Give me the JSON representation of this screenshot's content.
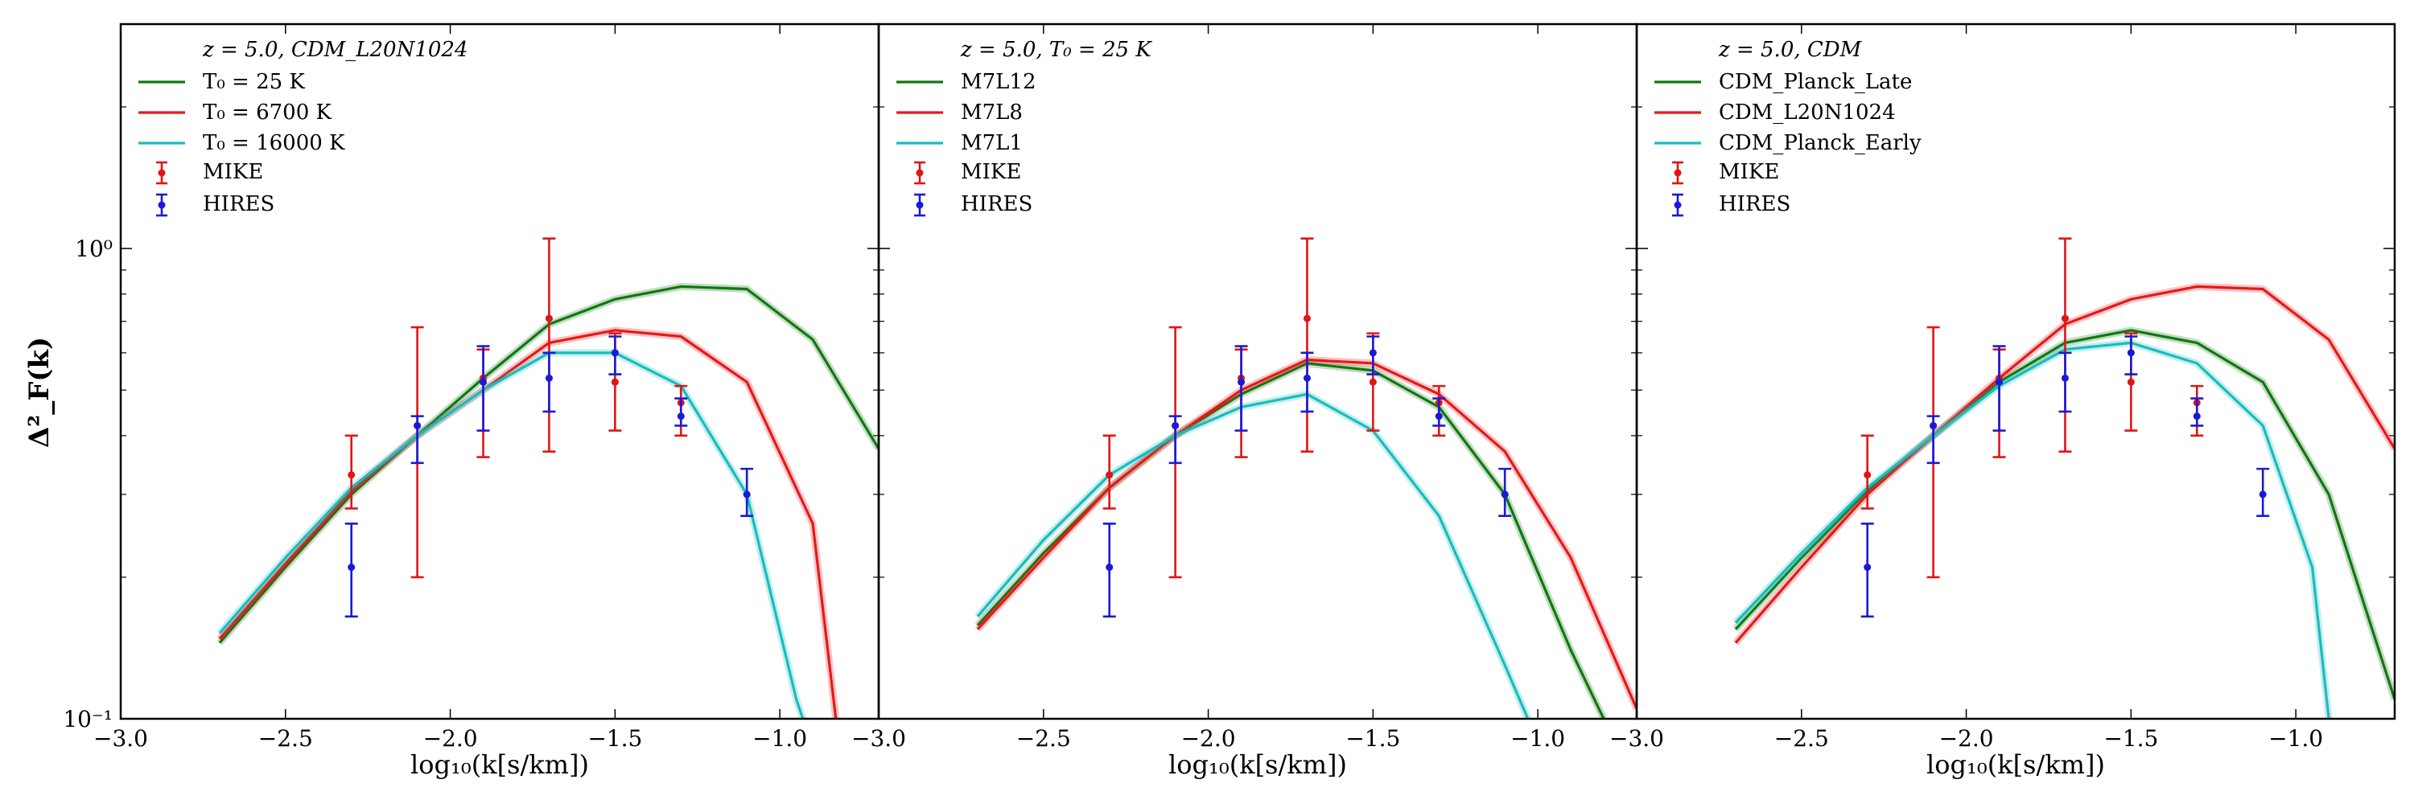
{
  "figure": {
    "ylabel": "Δ²_F(k)",
    "xlabel": "log₁₀(k[s/km])"
  },
  "chart_data": [
    {
      "type": "line",
      "title": "z = 5.0, CDM_L20N1024",
      "xlabel": "log₁₀(k[s/km])",
      "ylabel": "Δ²_F(k)",
      "xlim": [
        -3.0,
        -0.7
      ],
      "ylim": [
        0.1,
        3.0
      ],
      "yscale": "log",
      "xticks": [
        "−3.0",
        "−2.5",
        "−2.0",
        "−1.5",
        "−1.0"
      ],
      "yticks": [
        "10⁰",
        "10⁻¹"
      ],
      "legend_title": "z = 5.0, CDM_L20N1024",
      "legend_position": "top-left",
      "series": [
        {
          "name": "T₀ = 25 K",
          "color": "#117711",
          "x": [
            -2.7,
            -2.5,
            -2.3,
            -2.1,
            -1.9,
            -1.7,
            -1.5,
            -1.3,
            -1.1,
            -0.9,
            -0.7
          ],
          "y": [
            0.145,
            0.21,
            0.3,
            0.4,
            0.53,
            0.69,
            0.78,
            0.83,
            0.82,
            0.64,
            0.375
          ]
        },
        {
          "name": "T₀ = 6700 K",
          "color": "#e61919",
          "x": [
            -2.7,
            -2.5,
            -2.3,
            -2.1,
            -1.9,
            -1.7,
            -1.5,
            -1.3,
            -1.1,
            -0.9,
            -0.83
          ],
          "y": [
            0.148,
            0.214,
            0.305,
            0.4,
            0.5,
            0.63,
            0.67,
            0.65,
            0.52,
            0.26,
            0.1
          ]
        },
        {
          "name": "T₀ = 16000 K",
          "color": "#1abcbc",
          "x": [
            -2.7,
            -2.5,
            -2.3,
            -2.1,
            -1.9,
            -1.7,
            -1.5,
            -1.3,
            -1.1,
            -0.95,
            -0.93
          ],
          "y": [
            0.152,
            0.22,
            0.31,
            0.4,
            0.5,
            0.6,
            0.6,
            0.51,
            0.3,
            0.11,
            0.1
          ]
        }
      ],
      "errorbars": [
        {
          "name": "MIKE",
          "color": "#e01515",
          "x": [
            -2.3,
            -2.1,
            -1.9,
            -1.7,
            -1.5,
            -1.3
          ],
          "y": [
            0.33,
            0.42,
            0.53,
            0.71,
            0.52,
            0.47
          ],
          "ylow": [
            0.28,
            0.2,
            0.36,
            0.37,
            0.41,
            0.4
          ],
          "yhigh": [
            0.4,
            0.68,
            0.61,
            1.05,
            0.66,
            0.51
          ]
        },
        {
          "name": "HIRES",
          "color": "#1a1ad6",
          "x": [
            -2.3,
            -2.1,
            -1.9,
            -1.7,
            -1.5,
            -1.3,
            -1.1
          ],
          "y": [
            0.21,
            0.42,
            0.52,
            0.53,
            0.6,
            0.44,
            0.3
          ],
          "ylow": [
            0.165,
            0.35,
            0.41,
            0.45,
            0.54,
            0.42,
            0.27
          ],
          "yhigh": [
            0.26,
            0.44,
            0.62,
            0.6,
            0.65,
            0.48,
            0.34
          ]
        }
      ]
    },
    {
      "type": "line",
      "title": "z = 5.0, T₀ = 25 K",
      "xlabel": "log₁₀(k[s/km])",
      "ylabel": "",
      "xlim": [
        -3.0,
        -0.7
      ],
      "ylim": [
        0.1,
        3.0
      ],
      "yscale": "log",
      "xticks": [
        "−3.0",
        "−2.5",
        "−2.0",
        "−1.5",
        "−1.0"
      ],
      "legend_title": "z = 5.0, T₀ = 25 K",
      "legend_position": "top-left",
      "series": [
        {
          "name": "M7L12",
          "color": "#117711",
          "x": [
            -2.7,
            -2.5,
            -2.3,
            -2.1,
            -1.9,
            -1.7,
            -1.5,
            -1.3,
            -1.1,
            -0.9,
            -0.8
          ],
          "y": [
            0.158,
            0.225,
            0.31,
            0.4,
            0.49,
            0.57,
            0.55,
            0.46,
            0.3,
            0.14,
            0.1
          ]
        },
        {
          "name": "M7L8",
          "color": "#e61919",
          "x": [
            -2.7,
            -2.5,
            -2.3,
            -2.1,
            -1.9,
            -1.7,
            -1.5,
            -1.3,
            -1.1,
            -0.9,
            -0.7
          ],
          "y": [
            0.155,
            0.22,
            0.31,
            0.4,
            0.5,
            0.58,
            0.57,
            0.49,
            0.37,
            0.22,
            0.105
          ]
        },
        {
          "name": "M7L1",
          "color": "#1abcbc",
          "x": [
            -2.7,
            -2.5,
            -2.3,
            -2.1,
            -1.9,
            -1.7,
            -1.5,
            -1.3,
            -1.1,
            -1.03
          ],
          "y": [
            0.165,
            0.24,
            0.33,
            0.4,
            0.46,
            0.49,
            0.41,
            0.27,
            0.13,
            0.1
          ]
        }
      ],
      "errorbars": [
        {
          "name": "MIKE",
          "color": "#e01515",
          "x": [
            -2.3,
            -2.1,
            -1.9,
            -1.7,
            -1.5,
            -1.3
          ],
          "y": [
            0.33,
            0.42,
            0.53,
            0.71,
            0.52,
            0.47
          ],
          "ylow": [
            0.28,
            0.2,
            0.36,
            0.37,
            0.41,
            0.4
          ],
          "yhigh": [
            0.4,
            0.68,
            0.61,
            1.05,
            0.66,
            0.51
          ]
        },
        {
          "name": "HIRES",
          "color": "#1a1ad6",
          "x": [
            -2.3,
            -2.1,
            -1.9,
            -1.7,
            -1.5,
            -1.3,
            -1.1
          ],
          "y": [
            0.21,
            0.42,
            0.52,
            0.53,
            0.6,
            0.44,
            0.3
          ],
          "ylow": [
            0.165,
            0.35,
            0.41,
            0.45,
            0.54,
            0.42,
            0.27
          ],
          "yhigh": [
            0.26,
            0.44,
            0.62,
            0.6,
            0.65,
            0.48,
            0.34
          ]
        }
      ]
    },
    {
      "type": "line",
      "title": "z = 5.0, CDM",
      "xlabel": "log₁₀(k[s/km])",
      "ylabel": "",
      "xlim": [
        -3.0,
        -0.7
      ],
      "ylim": [
        0.1,
        3.0
      ],
      "yscale": "log",
      "xticks": [
        "−3.0",
        "−2.5",
        "−2.0",
        "−1.5",
        "−1.0"
      ],
      "legend_title": "z = 5.0, CDM",
      "legend_position": "top-left",
      "series": [
        {
          "name": "CDM_Planck_Late",
          "color": "#117711",
          "x": [
            -2.7,
            -2.5,
            -2.3,
            -2.1,
            -1.9,
            -1.7,
            -1.5,
            -1.3,
            -1.1,
            -0.9,
            -0.7
          ],
          "y": [
            0.155,
            0.22,
            0.305,
            0.4,
            0.52,
            0.63,
            0.67,
            0.63,
            0.52,
            0.3,
            0.11
          ]
        },
        {
          "name": "CDM_L20N1024",
          "color": "#e61919",
          "x": [
            -2.7,
            -2.5,
            -2.3,
            -2.1,
            -1.9,
            -1.7,
            -1.5,
            -1.3,
            -1.1,
            -0.9,
            -0.7
          ],
          "y": [
            0.145,
            0.21,
            0.3,
            0.4,
            0.53,
            0.69,
            0.78,
            0.83,
            0.82,
            0.64,
            0.375
          ]
        },
        {
          "name": "CDM_Planck_Early",
          "color": "#1abcbc",
          "x": [
            -2.7,
            -2.5,
            -2.3,
            -2.1,
            -1.9,
            -1.7,
            -1.5,
            -1.3,
            -1.1,
            -0.95,
            -0.9
          ],
          "y": [
            0.16,
            0.225,
            0.31,
            0.4,
            0.51,
            0.61,
            0.63,
            0.57,
            0.42,
            0.21,
            0.1
          ]
        }
      ],
      "errorbars": [
        {
          "name": "MIKE",
          "color": "#e01515",
          "x": [
            -2.3,
            -2.1,
            -1.9,
            -1.7,
            -1.5,
            -1.3
          ],
          "y": [
            0.33,
            0.42,
            0.53,
            0.71,
            0.52,
            0.47
          ],
          "ylow": [
            0.28,
            0.2,
            0.36,
            0.37,
            0.41,
            0.4
          ],
          "yhigh": [
            0.4,
            0.68,
            0.61,
            1.05,
            0.66,
            0.51
          ]
        },
        {
          "name": "HIRES",
          "color": "#1a1ad6",
          "x": [
            -2.3,
            -2.1,
            -1.9,
            -1.7,
            -1.5,
            -1.3,
            -1.1
          ],
          "y": [
            0.21,
            0.42,
            0.52,
            0.53,
            0.6,
            0.44,
            0.3
          ],
          "ylow": [
            0.165,
            0.35,
            0.41,
            0.45,
            0.54,
            0.42,
            0.27
          ],
          "yhigh": [
            0.26,
            0.44,
            0.62,
            0.6,
            0.65,
            0.48,
            0.34
          ]
        }
      ]
    }
  ]
}
